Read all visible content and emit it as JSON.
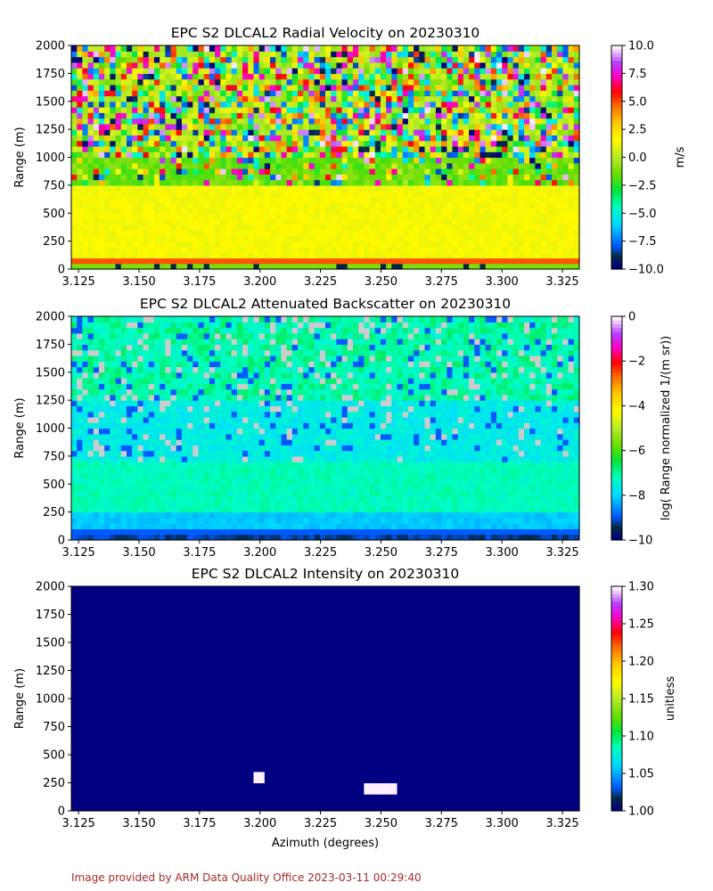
{
  "chart_data": [
    {
      "type": "heatmap",
      "title": "EPC S2 DLCAL2 Radial Velocity on 20230310",
      "xlabel": "",
      "ylabel": "Range (m)",
      "xlim": [
        3.122,
        3.332
      ],
      "ylim": [
        0,
        2000
      ],
      "x_ticks": [
        "3.125",
        "3.150",
        "3.175",
        "3.200",
        "3.225",
        "3.250",
        "3.275",
        "3.300",
        "3.325"
      ],
      "y_ticks": [
        "0",
        "250",
        "500",
        "750",
        "1000",
        "1250",
        "1500",
        "1750",
        "2000"
      ],
      "colorbar": {
        "label": "m/s",
        "range": [
          -10,
          10
        ],
        "ticks": [
          "−10.0",
          "−7.5",
          "−5.0",
          "−2.5",
          "0.0",
          "2.5",
          "5.0",
          "7.5",
          "10.0"
        ],
        "colormap": "gist_ncar-like"
      },
      "description_values": {
        "below_750m": 1.5,
        "750_to_1000m": -1.5,
        "above_1000m": "noisy -10 to 10"
      }
    },
    {
      "type": "heatmap",
      "title": "EPC S2 DLCAL2 Attenuated Backscatter on 20230310",
      "xlabel": "",
      "ylabel": "Range (m)",
      "xlim": [
        3.122,
        3.332
      ],
      "ylim": [
        0,
        2000
      ],
      "x_ticks": [
        "3.125",
        "3.150",
        "3.175",
        "3.200",
        "3.225",
        "3.250",
        "3.275",
        "3.300",
        "3.325"
      ],
      "y_ticks": [
        "0",
        "250",
        "500",
        "750",
        "1000",
        "1250",
        "1500",
        "1750",
        "2000"
      ],
      "colorbar": {
        "label": "log( Range normalized 1/(m sr))",
        "range": [
          -10,
          0
        ],
        "ticks": [
          "−10",
          "−8",
          "−6",
          "−4",
          "−2",
          "0"
        ],
        "colormap": "gist_ncar-like"
      },
      "description_values": {
        "below_100m": -9.5,
        "100_to_250m": -8,
        "250_to_700m": -7.3,
        "700_to_1200m": -7.8,
        "above_1200m": -7.5
      }
    },
    {
      "type": "heatmap",
      "title": "EPC S2 DLCAL2 Intensity on 20230310",
      "xlabel": "Azimuth (degrees)",
      "ylabel": "Range (m)",
      "xlim": [
        3.122,
        3.332
      ],
      "ylim": [
        0,
        2000
      ],
      "x_ticks": [
        "3.125",
        "3.150",
        "3.175",
        "3.200",
        "3.225",
        "3.250",
        "3.275",
        "3.300",
        "3.325"
      ],
      "y_ticks": [
        "0",
        "250",
        "500",
        "750",
        "1000",
        "1250",
        "1500",
        "1750",
        "2000"
      ],
      "colorbar": {
        "label": "unitless",
        "range": [
          1.0,
          1.3
        ],
        "ticks": [
          "1.00",
          "1.05",
          "1.10",
          "1.15",
          "1.20",
          "1.25",
          "1.30"
        ],
        "colormap": "gist_ncar-like"
      },
      "description_values": {
        "background": 1.0,
        "highlights": [
          {
            "azimuth": [
              3.197,
              3.201
            ],
            "range": [
              240,
              330
            ],
            "value": 1.3
          },
          {
            "azimuth": [
              3.244,
              3.256
            ],
            "range": [
              160,
              240
            ],
            "value": 1.3
          }
        ]
      }
    }
  ],
  "footer": "Image provided by ARM Data Quality Office 2023-03-11 00:29:40"
}
